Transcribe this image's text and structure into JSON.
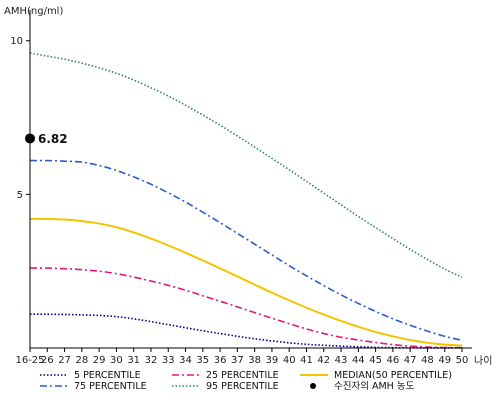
{
  "chart_data": {
    "type": "line",
    "ylabel": "AMH(ng/ml)",
    "xlabel": "나이",
    "categories": [
      "16-25",
      "26",
      "27",
      "28",
      "29",
      "30",
      "31",
      "32",
      "33",
      "34",
      "35",
      "36",
      "37",
      "38",
      "39",
      "40",
      "41",
      "42",
      "43",
      "44",
      "45",
      "46",
      "47",
      "48",
      "49",
      "50"
    ],
    "yticks": [
      5,
      10
    ],
    "ylim": [
      0,
      11
    ],
    "series": [
      {
        "name": "5 PERCENTILE",
        "color": "#000080",
        "style": "dotted",
        "values": [
          1.1,
          1.1,
          1.09,
          1.08,
          1.06,
          1.02,
          0.95,
          0.86,
          0.76,
          0.66,
          0.56,
          0.47,
          0.38,
          0.3,
          0.23,
          0.17,
          0.12,
          0.09,
          0.06,
          0.04,
          0.02,
          0.01,
          0.005,
          0.003,
          0.001,
          0.0
        ]
      },
      {
        "name": "25 PERCENTILE",
        "color": "#e0197d",
        "style": "dashdot",
        "values": [
          2.6,
          2.6,
          2.58,
          2.55,
          2.5,
          2.42,
          2.31,
          2.18,
          2.04,
          1.88,
          1.7,
          1.52,
          1.34,
          1.15,
          0.97,
          0.79,
          0.62,
          0.47,
          0.35,
          0.26,
          0.18,
          0.11,
          0.06,
          0.03,
          0.015,
          0.01
        ]
      },
      {
        "name": "MEDIAN(50 PERCENTILE)",
        "color": "#f2c500",
        "style": "solid",
        "values": [
          4.2,
          4.2,
          4.18,
          4.13,
          4.05,
          3.93,
          3.76,
          3.56,
          3.34,
          3.1,
          2.85,
          2.59,
          2.33,
          2.06,
          1.8,
          1.55,
          1.31,
          1.09,
          0.88,
          0.69,
          0.52,
          0.38,
          0.26,
          0.17,
          0.11,
          0.08
        ]
      },
      {
        "name": "75 PERCENTILE",
        "color": "#2d5cc8",
        "style": "dashdot",
        "values": [
          6.1,
          6.1,
          6.08,
          6.05,
          5.94,
          5.78,
          5.57,
          5.33,
          5.05,
          4.75,
          4.42,
          4.08,
          3.73,
          3.38,
          3.03,
          2.68,
          2.35,
          2.03,
          1.73,
          1.45,
          1.19,
          0.95,
          0.74,
          0.55,
          0.38,
          0.25
        ]
      },
      {
        "name": "95 PERCENTILE",
        "color": "#2f8a55",
        "style": "dotted",
        "values": [
          9.6,
          9.5,
          9.4,
          9.27,
          9.12,
          8.94,
          8.72,
          8.47,
          8.2,
          7.9,
          7.58,
          7.25,
          6.9,
          6.54,
          6.17,
          5.8,
          5.42,
          5.04,
          4.66,
          4.28,
          3.92,
          3.56,
          3.21,
          2.88,
          2.57,
          2.3
        ]
      }
    ],
    "marker": {
      "name": "수진자의 AMH 농도",
      "x": "16-25",
      "y": 6.82,
      "label": "6.82",
      "color": "#000000"
    },
    "legend": {
      "placement": "bottom"
    }
  }
}
